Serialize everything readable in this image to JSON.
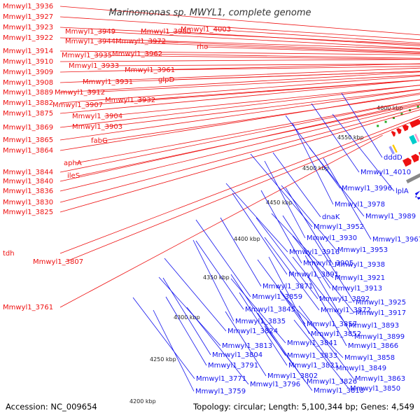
{
  "title": "Marinomonas sp. MWYL1, complete genome",
  "accession": "Accession: NC_009654",
  "summary": "Topology: circular; Length: 5,100,344 bp; Genes: 4,549",
  "colors": {
    "forward": "#ee1111",
    "reverse": "#1111ee",
    "backbone": "#888888",
    "gc_skew": "#22aa22"
  },
  "ticks": [
    "4200 kbp",
    "4250 kbp",
    "4300 kbp",
    "4350 kbp",
    "4400 kbp",
    "4450 kbp",
    "4500 kbp",
    "4550 kbp",
    "4600 kbp"
  ],
  "left_labels": [
    "Mmwyl1_3936",
    "Mmwyl1_3927",
    "Mmwyl1_3923",
    "Mmwyl1_3922",
    "Mmwyl1_3914",
    "Mmwyl1_3910",
    "Mmwyl1_3909",
    "Mmwyl1_3908",
    "Mmwyl1_3889",
    "Mmwyl1_3882",
    "Mmwyl1_3875",
    "Mmwyl1_3869",
    "Mmwyl1_3865",
    "Mmwyl1_3864",
    "Mmwyl1_3844",
    "Mmwyl1_3840",
    "Mmwyl1_3836",
    "Mmwyl1_3830",
    "Mmwyl1_3825",
    "tdh",
    "Mmwyl1_3761"
  ],
  "mid_labels": [
    "Mmwyl1_3949",
    "Mmwyl1_3944",
    "Mmwyl1_3935",
    "Mmwyl1_3933",
    "Mmwyl1_3931",
    "Mmwyl1_3912",
    "Mmwyl1_3907",
    "Mmwyl1_3904",
    "Mmwyl1_3903",
    "fabG",
    "aphA",
    "ileS",
    "Mmwyl1_3807",
    "Mmwyl1_3980",
    "Mmwyl1_3972",
    "Mmwyl1_3962",
    "Mmwyl1_3961",
    "glpD",
    "Mmwyl1_3932",
    "Mmwyl1_4003",
    "rho"
  ],
  "right_labels": [
    "dddD",
    "Mmwyl1_4010",
    "Mmwyl1_3996",
    "lplA",
    "Mmwyl1_3978",
    "dnaK",
    "Mmwyl1_3989",
    "Mmwyl1_3952",
    "Mmwyl1_3930",
    "Mmwyl1_3967",
    "Mmwyl1_3953",
    "Mmwyl1_3916",
    "Mmwyl1_3905",
    "Mmwyl1_3938",
    "Mmwyl1_3891",
    "Mmwyl1_3921",
    "Mmwyl1_3871",
    "Mmwyl1_3913",
    "Mmwyl1_3859",
    "Mmwyl1_3892",
    "Mmwyl1_3925",
    "Mmwyl1_3845",
    "Mmwyl1_3872",
    "Mmwyl1_3917",
    "Mmwyl1_3835",
    "Mmwyl1_3857",
    "Mmwyl1_3893",
    "Mmwyl1_3824",
    "Mmwyl1_3852",
    "Mmwyl1_3899",
    "Mmwyl1_3841",
    "Mmwyl1_3813",
    "Mmwyl1_3866",
    "Mmwyl1_3804",
    "Mmwyl1_3833",
    "Mmwyl1_3858",
    "Mmwyl1_3791",
    "Mmwyl1_3821",
    "Mmwyl1_3849",
    "Mmwyl1_3771",
    "Mmwyl1_3802",
    "Mmwyl1_3826",
    "Mmwyl1_3863",
    "Mmwyl1_3796",
    "Mmwyl1_3759",
    "Mmwyl1_3818",
    "Mmwyl1_3850"
  ]
}
